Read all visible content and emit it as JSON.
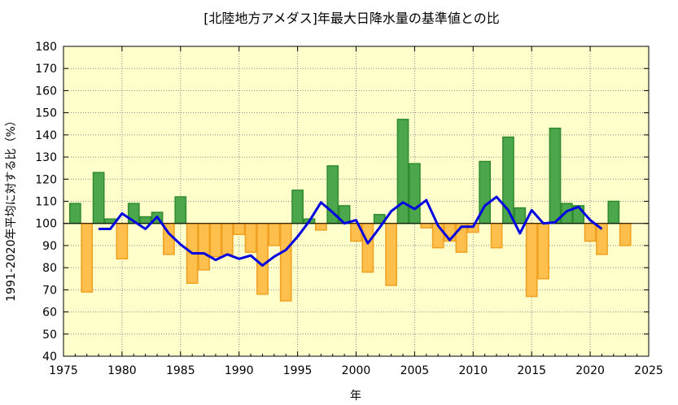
{
  "chart_data": {
    "type": "bar",
    "title": "[北陸地方アメダス]年最大日降水量の基準値との比",
    "xlabel": "年",
    "ylabel": "1991-2020年平均に対する比（%）",
    "xlim": [
      1975,
      2025
    ],
    "ylim": [
      40,
      180
    ],
    "baseline": 100,
    "grid": true,
    "x_ticks": [
      1975,
      1980,
      1985,
      1990,
      1995,
      2000,
      2005,
      2010,
      2015,
      2020,
      2025
    ],
    "y_ticks": [
      40,
      50,
      60,
      70,
      80,
      90,
      100,
      110,
      120,
      130,
      140,
      150,
      160,
      170,
      180
    ],
    "colors": {
      "plot_background": "#ffffcc",
      "above_fill": "#4ca64c",
      "above_stroke": "#2e8b2e",
      "below_fill": "#ffbf4c",
      "below_stroke": "#f0a020",
      "moving_average": "#0000e0"
    },
    "series": [
      {
        "type": "bar",
        "x": [
          1976,
          1977,
          1978,
          1979,
          1980,
          1981,
          1982,
          1983,
          1984,
          1985,
          1986,
          1987,
          1988,
          1989,
          1990,
          1991,
          1992,
          1993,
          1994,
          1995,
          1996,
          1997,
          1998,
          1999,
          2000,
          2001,
          2002,
          2003,
          2004,
          2005,
          2006,
          2007,
          2008,
          2009,
          2010,
          2011,
          2012,
          2013,
          2014,
          2015,
          2016,
          2017,
          2018,
          2019,
          2020,
          2021,
          2022,
          2023
        ],
        "values": [
          109,
          69,
          123,
          102,
          84,
          109,
          103,
          105,
          86,
          112,
          73,
          79,
          85,
          86,
          95,
          87,
          68,
          90,
          65,
          115,
          102,
          97,
          126,
          108,
          92,
          78,
          104,
          72,
          147,
          127,
          98,
          89,
          92,
          87,
          96,
          128,
          89,
          139,
          107,
          67,
          75,
          143,
          109,
          108,
          92,
          86,
          110,
          90
        ]
      },
      {
        "type": "line",
        "x": [
          1978,
          1979,
          1980,
          1981,
          1982,
          1983,
          1984,
          1985,
          1986,
          1987,
          1988,
          1989,
          1990,
          1991,
          1992,
          1993,
          1994,
          1995,
          1996,
          1997,
          1998,
          1999,
          2000,
          2001,
          2002,
          2003,
          2004,
          2005,
          2006,
          2007,
          2008,
          2009,
          2010,
          2011,
          2012,
          2013,
          2014,
          2015,
          2016,
          2017,
          2018,
          2019,
          2020,
          2021
        ],
        "values": [
          97.5,
          97.5,
          104.5,
          101,
          97.5,
          103,
          95.5,
          90.5,
          86.5,
          86.5,
          83.5,
          86,
          84,
          85.5,
          81,
          85,
          88,
          94,
          101,
          109.5,
          105,
          100,
          101.5,
          91,
          98,
          105.5,
          109.5,
          106.5,
          110.5,
          99,
          92.5,
          98.5,
          98.5,
          108,
          112,
          106,
          95.5,
          106,
          100,
          100.5,
          105.5,
          107.5,
          101.5,
          97.5
        ]
      }
    ]
  }
}
